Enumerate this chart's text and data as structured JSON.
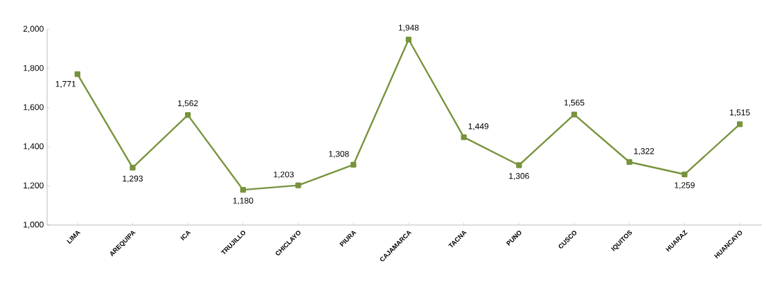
{
  "chart_data": {
    "type": "line",
    "categories": [
      "LIMA",
      "AREQUIPA",
      "ICA",
      "TRUJILLO",
      "CHICLAYO",
      "PIURA",
      "CAJAMARCA",
      "TACNA",
      "PUNO",
      "CUSCO",
      "IQUITOS",
      "HUARAZ",
      "HUANCAYO"
    ],
    "values": [
      1771,
      1293,
      1562,
      1180,
      1203,
      1308,
      1948,
      1449,
      1306,
      1565,
      1322,
      1259,
      1515
    ],
    "value_labels": [
      "1,771",
      "1,293",
      "1,562",
      "1,180",
      "1,203",
      "1,308",
      "1,948",
      "1,449",
      "1,306",
      "1,565",
      "1,322",
      "1,259",
      "1,515"
    ],
    "color": "#77933c",
    "marker": "square",
    "grid": false,
    "ylim": [
      1000,
      2000
    ],
    "yticks": [
      {
        "value": 1000,
        "label": "1,000"
      },
      {
        "value": 1200,
        "label": "1,200"
      },
      {
        "value": 1400,
        "label": "1,400"
      },
      {
        "value": 1600,
        "label": "1,600"
      },
      {
        "value": 1800,
        "label": "1,800"
      },
      {
        "value": 2000,
        "label": "2,000"
      }
    ]
  }
}
